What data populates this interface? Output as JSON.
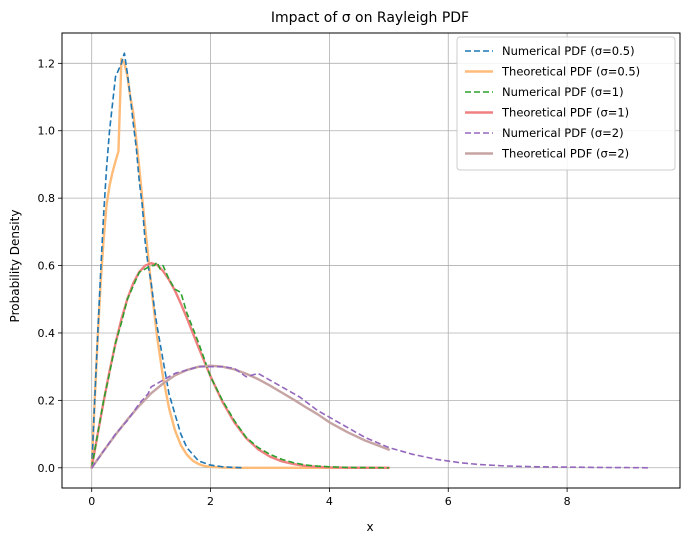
{
  "chart_data": {
    "type": "line",
    "title": "Impact of σ on Rayleigh PDF",
    "xlabel": "x",
    "ylabel": "Probability Density",
    "xlim": [
      -0.5,
      9.9
    ],
    "ylim": [
      -0.06,
      1.29
    ],
    "xticks": [
      0,
      2,
      4,
      6,
      8
    ],
    "yticks": [
      0.0,
      0.2,
      0.4,
      0.6,
      0.8,
      1.0,
      1.2
    ],
    "grid": true,
    "legend": "top-right",
    "series": [
      {
        "name": "Numerical PDF (σ=0.5)",
        "color": "#1f77b4",
        "dash": true,
        "x": [
          0,
          0.05,
          0.1,
          0.15,
          0.2,
          0.25,
          0.3,
          0.35,
          0.4,
          0.45,
          0.5,
          0.53,
          0.55,
          0.6,
          0.65,
          0.7,
          0.75,
          0.8,
          0.85,
          0.9,
          0.95,
          1.0,
          1.05,
          1.1,
          1.2,
          1.3,
          1.4,
          1.5,
          1.6,
          1.7,
          1.8,
          2.0,
          2.2,
          2.4,
          2.55
        ],
        "y": [
          0,
          0.2,
          0.39,
          0.58,
          0.75,
          0.89,
          1.0,
          1.08,
          1.16,
          1.18,
          1.2,
          1.22,
          1.23,
          1.17,
          1.1,
          1.02,
          0.95,
          0.85,
          0.78,
          0.67,
          0.6,
          0.55,
          0.48,
          0.42,
          0.32,
          0.22,
          0.16,
          0.1,
          0.06,
          0.04,
          0.02,
          0.008,
          0.003,
          0.001,
          0
        ]
      },
      {
        "name": "Theoretical PDF (σ=0.5)",
        "color": "#ffbb78",
        "dash": false,
        "x": [
          0,
          0.05,
          0.1,
          0.15,
          0.2,
          0.25,
          0.3,
          0.35,
          0.4,
          0.45,
          0.5,
          0.55,
          0.6,
          0.65,
          0.7,
          0.75,
          0.8,
          0.85,
          0.9,
          0.95,
          1.0,
          1.1,
          1.2,
          1.3,
          1.4,
          1.5,
          1.6,
          1.7,
          1.8,
          1.9,
          2.0,
          2.2,
          2.5,
          3.0,
          4.0,
          5.0
        ],
        "y": [
          0,
          0.198,
          0.384,
          0.548,
          0.677,
          0.779,
          0.837,
          0.877,
          0.909,
          0.939,
          1.213,
          1.2,
          1.163,
          1.1,
          1.052,
          0.973,
          0.891,
          0.8,
          0.712,
          0.629,
          0.541,
          0.389,
          0.269,
          0.178,
          0.112,
          0.067,
          0.039,
          0.021,
          0.011,
          0.005,
          0.003,
          0.0005,
          0.0,
          0,
          0,
          0
        ]
      },
      {
        "name": "Numerical PDF (σ=1)",
        "color": "#2ca02c",
        "dash": true,
        "x": [
          0,
          0.1,
          0.2,
          0.3,
          0.4,
          0.5,
          0.6,
          0.7,
          0.8,
          0.9,
          1.0,
          1.05,
          1.1,
          1.15,
          1.2,
          1.3,
          1.4,
          1.5,
          1.6,
          1.8,
          2.0,
          2.2,
          2.4,
          2.6,
          2.8,
          3.0,
          3.2,
          3.4,
          3.6,
          3.8,
          4.0,
          4.3,
          4.6,
          5.0
        ],
        "y": [
          0,
          0.1,
          0.2,
          0.28,
          0.37,
          0.43,
          0.5,
          0.54,
          0.58,
          0.59,
          0.6,
          0.6,
          0.61,
          0.59,
          0.6,
          0.56,
          0.53,
          0.52,
          0.46,
          0.37,
          0.27,
          0.2,
          0.14,
          0.09,
          0.06,
          0.04,
          0.025,
          0.015,
          0.008,
          0.005,
          0.003,
          0.001,
          0.0005,
          0
        ]
      },
      {
        "name": "Theoretical PDF (σ=1)",
        "color": "#f08080",
        "dash": false,
        "x": [
          0,
          0.1,
          0.2,
          0.3,
          0.4,
          0.5,
          0.6,
          0.7,
          0.8,
          0.9,
          1.0,
          1.1,
          1.2,
          1.3,
          1.4,
          1.5,
          1.6,
          1.8,
          2.0,
          2.2,
          2.4,
          2.6,
          2.8,
          3.0,
          3.2,
          3.4,
          3.6,
          3.8,
          4.0,
          4.3,
          4.6,
          5.0
        ],
        "y": [
          0,
          0.0995,
          0.196,
          0.287,
          0.369,
          0.441,
          0.501,
          0.548,
          0.581,
          0.6,
          0.607,
          0.602,
          0.584,
          0.558,
          0.526,
          0.487,
          0.445,
          0.356,
          0.271,
          0.196,
          0.135,
          0.088,
          0.055,
          0.033,
          0.019,
          0.011,
          0.0055,
          0.0028,
          0.0013,
          0.0004,
          0.0001,
          0
        ]
      },
      {
        "name": "Numerical PDF (σ=2)",
        "color": "#9467bd",
        "dash": true,
        "x": [
          0,
          0.2,
          0.4,
          0.6,
          0.8,
          0.95,
          1.0,
          1.2,
          1.4,
          1.6,
          1.8,
          2.0,
          2.2,
          2.4,
          2.6,
          2.8,
          3.0,
          3.2,
          3.5,
          3.8,
          4.0,
          4.3,
          4.6,
          5.0,
          5.4,
          5.8,
          6.0,
          6.2,
          6.5,
          7.0,
          7.5,
          8.0,
          8.5,
          9.0,
          9.4
        ],
        "y": [
          0,
          0.05,
          0.1,
          0.14,
          0.19,
          0.22,
          0.24,
          0.26,
          0.28,
          0.29,
          0.3,
          0.3,
          0.3,
          0.295,
          0.27,
          0.28,
          0.26,
          0.24,
          0.21,
          0.17,
          0.15,
          0.12,
          0.09,
          0.06,
          0.04,
          0.025,
          0.02,
          0.015,
          0.01,
          0.005,
          0.003,
          0.002,
          0.001,
          0.0005,
          0
        ]
      },
      {
        "name": "Theoretical PDF (σ=2)",
        "color": "#c7a4a4",
        "dash": false,
        "x": [
          0,
          0.2,
          0.4,
          0.6,
          0.8,
          1.0,
          1.2,
          1.4,
          1.6,
          1.8,
          2.0,
          2.2,
          2.4,
          2.6,
          2.8,
          3.0,
          3.2,
          3.4,
          3.6,
          3.8,
          4.0,
          4.3,
          4.6,
          5.0
        ],
        "y": [
          0,
          0.0498,
          0.098,
          0.143,
          0.184,
          0.221,
          0.25,
          0.274,
          0.29,
          0.3,
          0.303,
          0.3,
          0.292,
          0.279,
          0.263,
          0.244,
          0.223,
          0.202,
          0.18,
          0.159,
          0.135,
          0.106,
          0.081,
          0.054
        ]
      }
    ]
  }
}
